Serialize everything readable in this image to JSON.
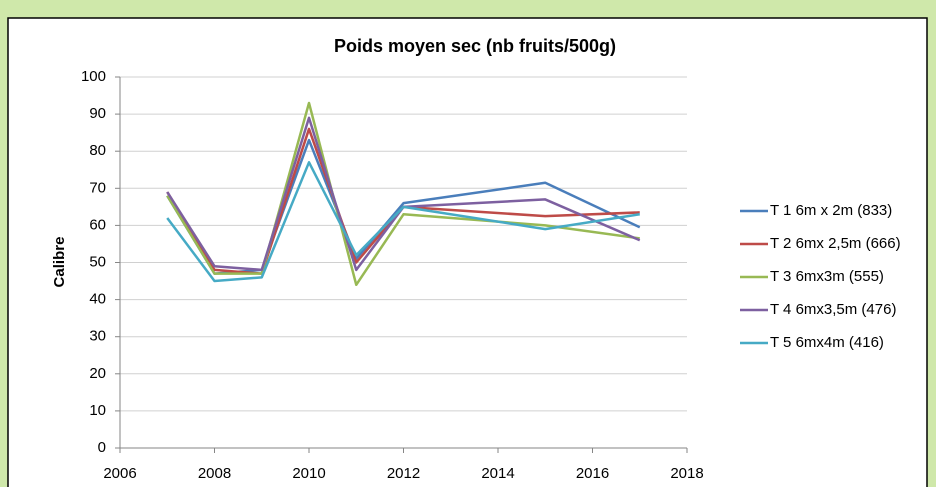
{
  "chart_data": {
    "type": "line",
    "title": "Poids moyen sec (nb fruits/500g)",
    "y_label": "Calibre",
    "x": [
      2007,
      2008,
      2009,
      2010,
      2011,
      2012,
      2015,
      2017
    ],
    "series": [
      {
        "name": "T 1 6m x 2m (833)",
        "color": "#4a7ebb",
        "values": [
          68,
          47,
          48,
          83,
          51,
          66,
          71.5,
          59.5
        ]
      },
      {
        "name": "T 2 6mx 2,5m (666)",
        "color": "#be4b48",
        "values": [
          69,
          48,
          47,
          86,
          50,
          65,
          62.5,
          63.5
        ]
      },
      {
        "name": "T 3 6mx3m (555)",
        "color": "#98b954",
        "values": [
          68,
          47,
          47,
          93,
          44,
          63,
          60,
          56.5
        ]
      },
      {
        "name": "T 4 6mx3,5m (476)",
        "color": "#7d60a0",
        "values": [
          69,
          49,
          48,
          89,
          48,
          65,
          67,
          56
        ]
      },
      {
        "name": "T 5 6mx4m (416)",
        "color": "#46aac5",
        "values": [
          62,
          45,
          46,
          77,
          52,
          65,
          59,
          63
        ]
      }
    ],
    "xlim": [
      2006,
      2018
    ],
    "xticks": [
      2006,
      2008,
      2010,
      2012,
      2014,
      2016,
      2018
    ],
    "ylim": [
      0,
      100
    ],
    "yticks": [
      0,
      10,
      20,
      30,
      40,
      50,
      60,
      70,
      80,
      90,
      100
    ],
    "grid": true,
    "legend": "right"
  }
}
